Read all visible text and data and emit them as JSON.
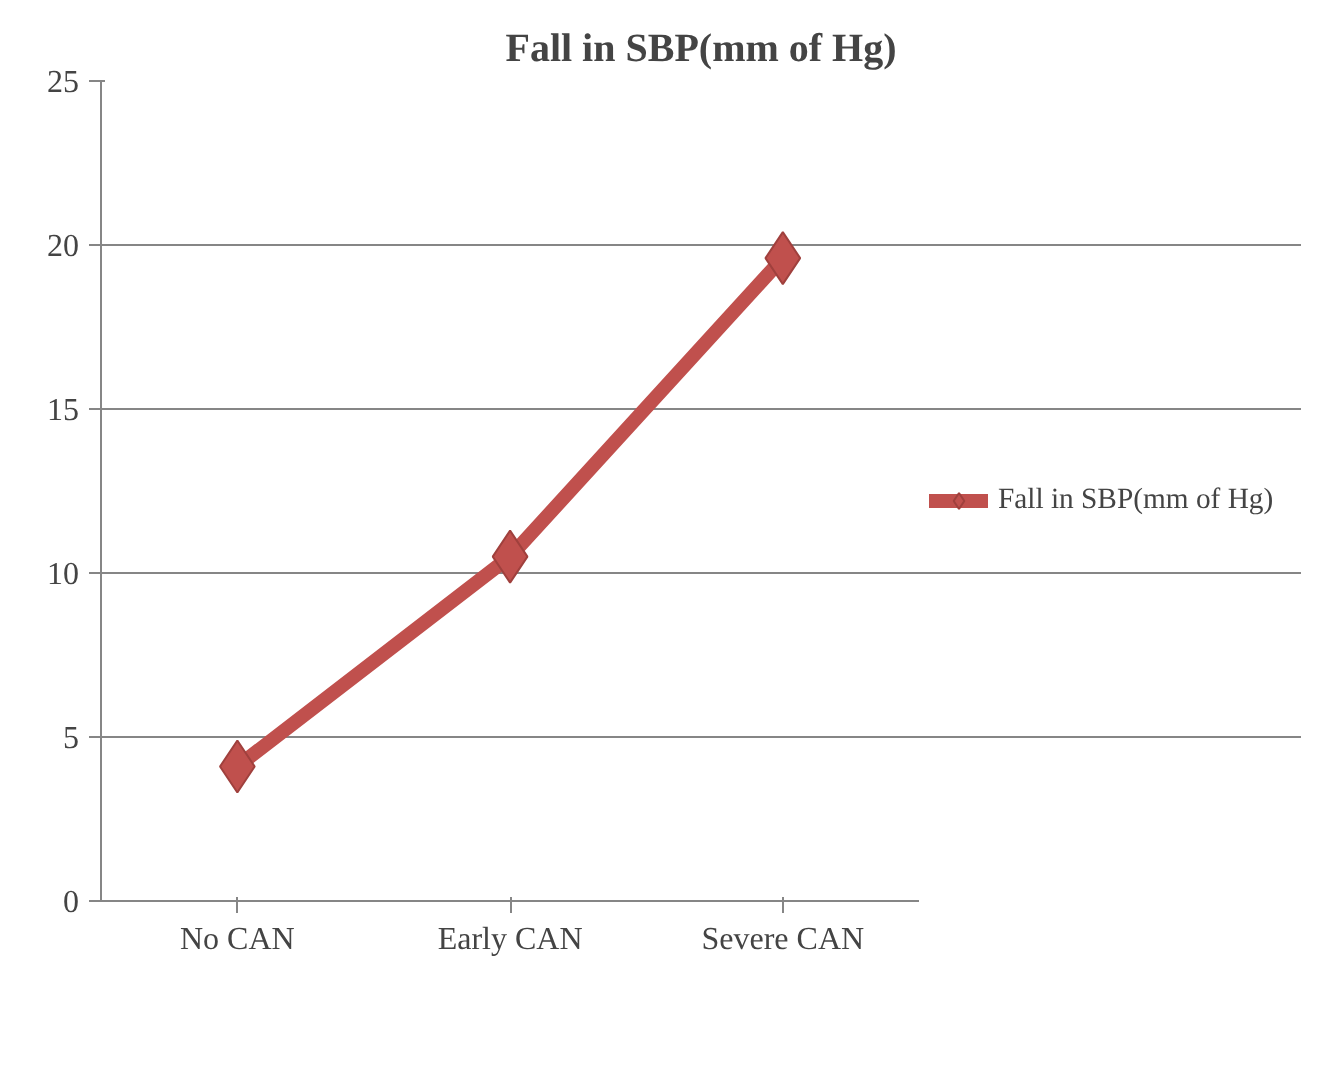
{
  "chart_data": {
    "type": "line",
    "title": "Fall in SBP(mm of Hg)",
    "categories": [
      "No CAN",
      "Early CAN",
      "Severe CAN"
    ],
    "series": [
      {
        "name": "Fall in SBP(mm of Hg)",
        "color": "#c0504d",
        "values": [
          4.1,
          10.5,
          19.6
        ]
      }
    ],
    "ylim": [
      0,
      25
    ],
    "yticks": [
      0,
      5,
      10,
      15,
      20,
      25
    ],
    "grid": "y",
    "legend": "right",
    "marker": "diamond",
    "line_style": "solid"
  }
}
